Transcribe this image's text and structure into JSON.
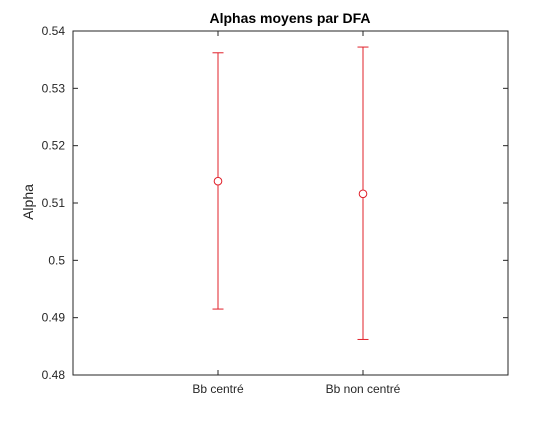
{
  "chart_data": {
    "type": "scatter",
    "title": "Alphas moyens par DFA",
    "xlabel": "",
    "ylabel": "Alpha",
    "categories": [
      "Bb centré",
      "Bb non centré"
    ],
    "x": [
      1,
      2
    ],
    "xlim": [
      0,
      3
    ],
    "ylim": [
      0.48,
      0.54
    ],
    "yticks": [
      0.48,
      0.49,
      0.5,
      0.51,
      0.52,
      0.53,
      0.54
    ],
    "ytick_labels": [
      "0.48",
      "0.49",
      "0.5",
      "0.51",
      "0.52",
      "0.53",
      "0.54"
    ],
    "series": [
      {
        "values": [
          0.5138,
          0.5116
        ],
        "error_lower": [
          0.4915,
          0.4862
        ],
        "error_upper": [
          0.5362,
          0.5372
        ],
        "marker": "circle",
        "color": "#e0202a"
      }
    ],
    "grid": false,
    "box": true
  },
  "colors": {
    "axis": "#262626",
    "series": "#e0202a",
    "background": "#ffffff"
  }
}
